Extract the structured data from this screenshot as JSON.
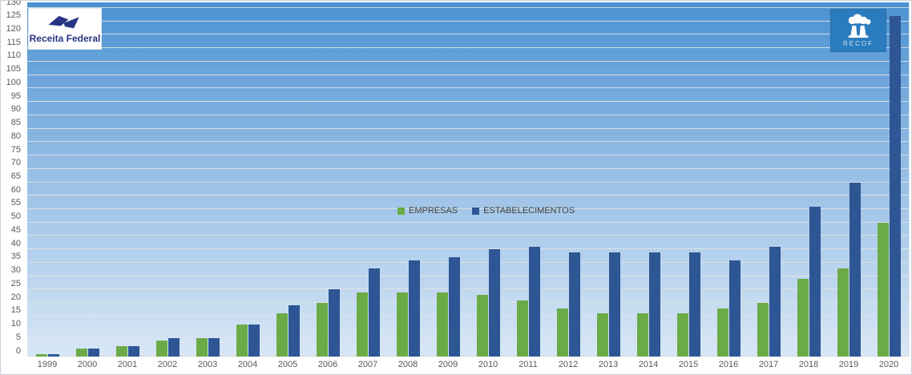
{
  "chart_data": {
    "type": "bar",
    "title": "",
    "categories": [
      "1999",
      "2000",
      "2001",
      "2002",
      "2003",
      "2004",
      "2005",
      "2006",
      "2007",
      "2008",
      "2009",
      "2010",
      "2011",
      "2012",
      "2013",
      "2014",
      "2015",
      "2016",
      "2017",
      "2018",
      "2019",
      "2020"
    ],
    "series": [
      {
        "name": "EMPRESAS",
        "color": "#6bab47",
        "values": [
          1,
          3,
          4,
          6,
          7,
          12,
          16,
          20,
          24,
          24,
          24,
          23,
          21,
          18,
          16,
          16,
          16,
          18,
          20,
          29,
          33,
          50
        ]
      },
      {
        "name": "ESTABELECIMENTOS",
        "color": "#2e5694",
        "values": [
          1,
          3,
          4,
          7,
          7,
          12,
          19,
          25,
          33,
          36,
          37,
          40,
          41,
          39,
          39,
          39,
          39,
          36,
          41,
          56,
          65,
          127
        ]
      }
    ],
    "xlabel": "",
    "ylabel": "",
    "ylim": [
      0,
      130
    ],
    "ytick_step": 5,
    "grid": true,
    "legend_position": "center-middle"
  },
  "logos": {
    "receita_federal": {
      "text": "Receita Federal"
    },
    "recof": {
      "text": "RECOF"
    }
  },
  "colors": {
    "plot_gradient_top": "#4a92d2",
    "plot_gradient_bottom": "#d8e7f6",
    "gridline": "#e4e4e4",
    "axis_text": "#595959",
    "legend_text": "#404040",
    "recof_box": "#2a7cbe",
    "rf_navy": "#283583"
  }
}
